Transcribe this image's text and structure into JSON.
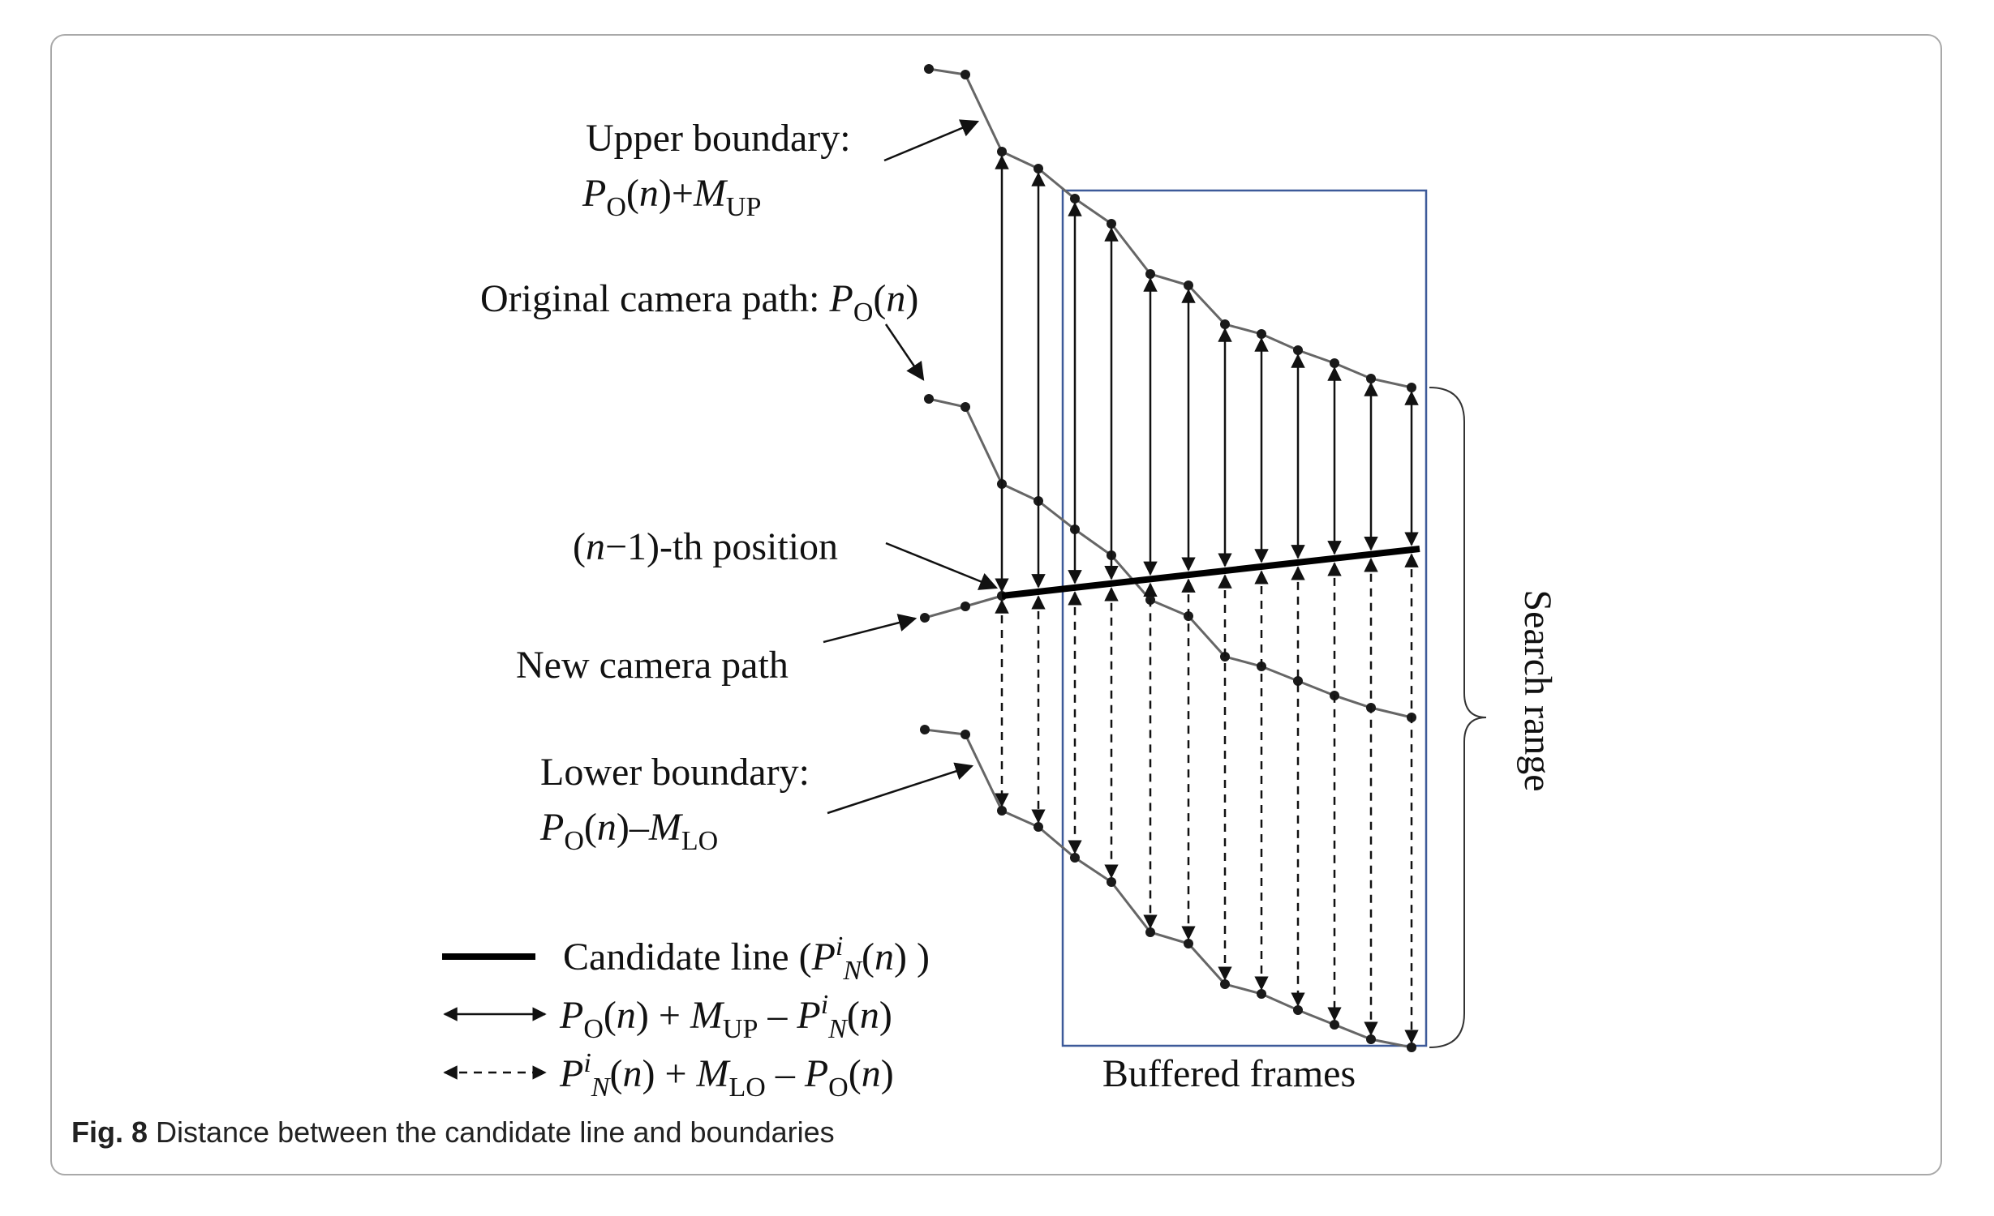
{
  "labels": {
    "upper_boundary_line1": "Upper boundary:",
    "original_path_text": "Original camera path: ",
    "nminus1_rest": "-th position",
    "new_camera_path": "New camera path",
    "lower_boundary_line1": "Lower boundary:",
    "search_range": "Search range",
    "buffered_frames": "Buffered frames"
  },
  "legend": {
    "candidate_line_text": "Candidate line ("
  },
  "caption": {
    "fig_label": "Fig. 8",
    "text": " Distance between the candidate line and boundaries"
  },
  "colors": {
    "buffer_box": "#3d5a99",
    "path_line": "#666666",
    "candidate_line": "#000000",
    "frame_border": "#a9a9a9"
  },
  "paths": {
    "upper_boundary": [
      [
        1145,
        85
      ],
      [
        1190,
        92
      ],
      [
        1235,
        187
      ],
      [
        1280,
        208
      ],
      [
        1325,
        245
      ],
      [
        1370,
        276
      ],
      [
        1418,
        338
      ],
      [
        1465,
        352
      ],
      [
        1510,
        400
      ],
      [
        1555,
        412
      ],
      [
        1600,
        432
      ],
      [
        1645,
        448
      ],
      [
        1690,
        467
      ],
      [
        1740,
        478
      ]
    ],
    "original_path": [
      [
        1145,
        492
      ],
      [
        1190,
        502
      ],
      [
        1235,
        597
      ],
      [
        1280,
        618
      ],
      [
        1325,
        653
      ],
      [
        1370,
        685
      ],
      [
        1418,
        740
      ],
      [
        1465,
        760
      ],
      [
        1510,
        810
      ],
      [
        1555,
        822
      ],
      [
        1600,
        840
      ],
      [
        1645,
        858
      ],
      [
        1690,
        873
      ],
      [
        1740,
        885
      ]
    ],
    "new_path": [
      [
        1140,
        762
      ],
      [
        1190,
        748
      ],
      [
        1235,
        735
      ]
    ],
    "lower_boundary": [
      [
        1140,
        900
      ],
      [
        1190,
        906
      ],
      [
        1235,
        1000
      ],
      [
        1280,
        1020
      ],
      [
        1325,
        1058
      ],
      [
        1370,
        1088
      ],
      [
        1418,
        1150
      ],
      [
        1465,
        1164
      ],
      [
        1510,
        1214
      ],
      [
        1555,
        1226
      ],
      [
        1600,
        1246
      ],
      [
        1645,
        1264
      ],
      [
        1690,
        1282
      ],
      [
        1740,
        1292
      ]
    ],
    "candidate_line": [
      [
        1235,
        735
      ],
      [
        1750,
        677
      ]
    ]
  }
}
